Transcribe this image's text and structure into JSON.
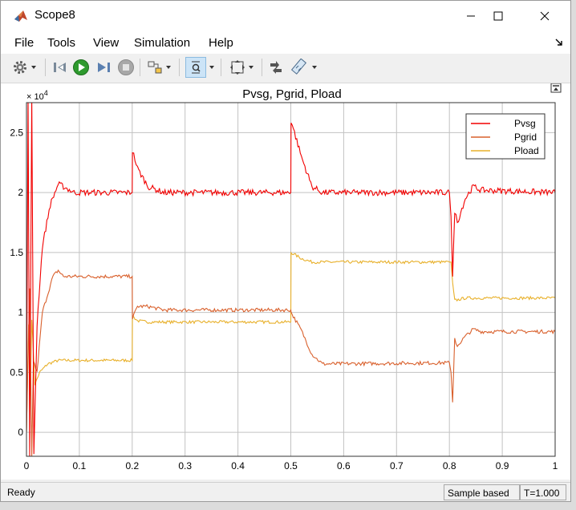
{
  "window": {
    "title": "Scope8"
  },
  "menu": [
    "File",
    "Tools",
    "View",
    "Simulation",
    "Help"
  ],
  "toolbar_icons": [
    "gear-icon",
    "step-back-icon",
    "run-icon",
    "step-forward-icon",
    "stop-icon",
    "highlight-block-icon",
    "zoom-icon",
    "fit-to-view-icon",
    "cursor-measurements-icon",
    "signal-statistics-icon"
  ],
  "plot": {
    "title": "Pvsg, Pgrid, Pload",
    "exponent": "× 10",
    "exponent_power": "4"
  },
  "status": {
    "ready": "Ready",
    "mode": "Sample based",
    "time": "T=1.000"
  },
  "colors": {
    "background": "#ffffff",
    "grid": "#c2c2c2",
    "Pvsg": "#f20000",
    "Pgrid": "#d9602c",
    "Pload": "#e8b02a"
  },
  "chart_data": {
    "type": "line",
    "title": "Pvsg, Pgrid, Pload",
    "xlim": [
      0,
      1
    ],
    "ylim": [
      -0.2,
      2.75
    ],
    "y_unit": "× 10^4",
    "x_ticks": [
      "0",
      "0.1",
      "0.2",
      "0.3",
      "0.4",
      "0.5",
      "0.6",
      "0.7",
      "0.8",
      "0.9",
      "1"
    ],
    "y_ticks": [
      "0",
      "0.5",
      "1",
      "1.5",
      "2",
      "2.5"
    ],
    "grid": true,
    "legend_position": "top-right",
    "series": [
      {
        "name": "Pvsg",
        "color": "#f20000",
        "noise": 0.025,
        "x": [
          0,
          0.003,
          0.006,
          0.01,
          0.014,
          0.02,
          0.03,
          0.045,
          0.06,
          0.07,
          0.09,
          0.2,
          0.2005,
          0.21,
          0.23,
          0.26,
          0.5,
          0.5005,
          0.52,
          0.54,
          0.56,
          0.8,
          0.803,
          0.806,
          0.81,
          0.815,
          0.83,
          0.845,
          0.86,
          1
        ],
        "y": [
          0,
          2.8,
          -0.2,
          2.8,
          -0.2,
          0.9,
          1.55,
          1.9,
          2.07,
          2.05,
          2.0,
          2.0,
          2.35,
          2.2,
          2.05,
          2.0,
          2.0,
          2.6,
          2.3,
          2.05,
          2.0,
          2.0,
          1.8,
          1.3,
          1.85,
          1.75,
          1.95,
          2.05,
          2.02,
          2.0
        ]
      },
      {
        "name": "Pgrid",
        "color": "#d9602c",
        "noise": 0.015,
        "x": [
          0,
          0.006,
          0.01,
          0.013,
          0.02,
          0.03,
          0.05,
          0.06,
          0.07,
          0.09,
          0.2,
          0.2005,
          0.21,
          0.23,
          0.26,
          0.5,
          0.5005,
          0.52,
          0.54,
          0.56,
          0.8,
          0.803,
          0.806,
          0.81,
          0.815,
          0.83,
          0.845,
          0.86,
          1
        ],
        "y": [
          0,
          1.2,
          -0.2,
          0.6,
          0.5,
          1.0,
          1.3,
          1.35,
          1.3,
          1.3,
          1.3,
          0.95,
          1.05,
          1.05,
          1.02,
          1.02,
          1.0,
          0.85,
          0.65,
          0.57,
          0.58,
          0.5,
          0.25,
          0.78,
          0.72,
          0.8,
          0.86,
          0.84,
          0.84
        ]
      },
      {
        "name": "Pload",
        "color": "#e8b02a",
        "noise": 0.012,
        "x": [
          0,
          0.004,
          0.007,
          0.01,
          0.016,
          0.025,
          0.04,
          0.06,
          0.2,
          0.2005,
          0.21,
          0.23,
          0.5,
          0.5005,
          0.52,
          0.54,
          0.8,
          0.803,
          0.806,
          0.81,
          0.83,
          1
        ],
        "y": [
          0,
          0.9,
          0.3,
          0.95,
          0.4,
          0.5,
          0.57,
          0.6,
          0.6,
          0.97,
          0.93,
          0.92,
          0.92,
          1.5,
          1.45,
          1.42,
          1.42,
          1.42,
          1.25,
          1.1,
          1.12,
          1.12
        ]
      }
    ]
  }
}
